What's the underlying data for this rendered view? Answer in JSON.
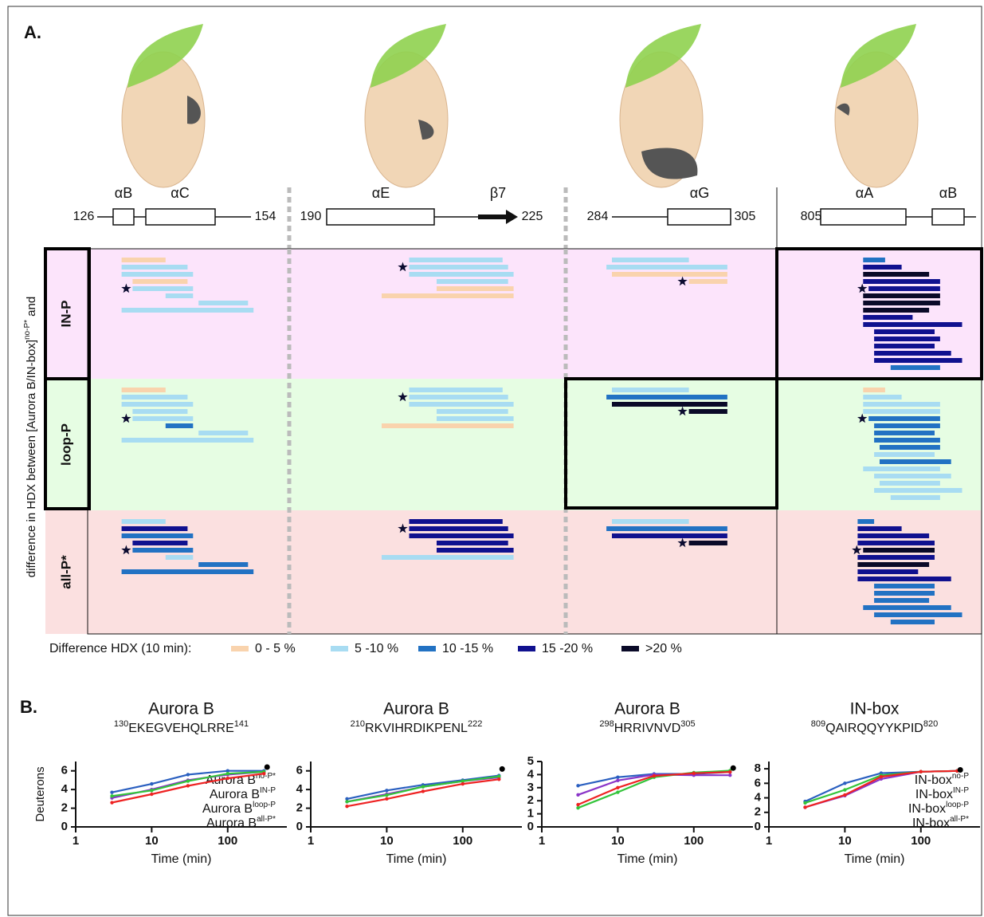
{
  "panel_a": {
    "label": "A.",
    "columns": [
      {
        "start": 126,
        "end": 154,
        "elements": [
          "αB",
          "αC"
        ]
      },
      {
        "start": 190,
        "end": 225,
        "elements": [
          "αE",
          "β7"
        ]
      },
      {
        "start": 284,
        "end": 305,
        "elements": [
          "αG"
        ]
      },
      {
        "start": 805,
        "elements": [
          "αA",
          "αB"
        ]
      }
    ],
    "y_label": {
      "text": "difference in HDX between [Aurora B/IN-box]",
      "sup": "no-P*",
      "tail": " and"
    },
    "rows": [
      {
        "label": "IN-P",
        "stars": [
          4,
          1,
          3,
          4
        ],
        "cells": [
          [
            [
              130,
              138,
              0
            ],
            [
              130,
              142,
              1
            ],
            [
              130,
              143,
              1
            ],
            [
              132,
              142,
              0
            ],
            [
              132,
              143,
              1
            ],
            [
              138,
              143,
              1
            ],
            [
              144,
              153,
              1
            ],
            [
              130,
              154,
              1
            ]
          ],
          [
            [
              205,
              222,
              1
            ],
            [
              205,
              223,
              1
            ],
            [
              205,
              224,
              1
            ],
            [
              210,
              223,
              1
            ],
            [
              210,
              224,
              0
            ],
            [
              200,
              224,
              0
            ]
          ],
          [
            [
              284,
              298,
              1
            ],
            [
              283,
              305,
              1
            ],
            [
              284,
              305,
              0
            ],
            [
              298,
              305,
              0
            ]
          ],
          [
            [
              812,
              816,
              2
            ],
            [
              812,
              819,
              3
            ],
            [
              812,
              824,
              4
            ],
            [
              812,
              826,
              3
            ],
            [
              813,
              826,
              3
            ],
            [
              812,
              826,
              4
            ],
            [
              812,
              826,
              4
            ],
            [
              812,
              824,
              4
            ],
            [
              812,
              821,
              3
            ],
            [
              812,
              830,
              3
            ],
            [
              814,
              825,
              3
            ],
            [
              814,
              826,
              3
            ],
            [
              814,
              825,
              3
            ],
            [
              814,
              828,
              3
            ],
            [
              814,
              830,
              3
            ],
            [
              817,
              826,
              2
            ]
          ]
        ]
      },
      {
        "label": "loop-P",
        "stars": [
          4,
          1,
          3,
          4
        ],
        "cells": [
          [
            [
              130,
              138,
              0
            ],
            [
              130,
              142,
              1
            ],
            [
              130,
              143,
              1
            ],
            [
              132,
              142,
              1
            ],
            [
              132,
              143,
              1
            ],
            [
              138,
              143,
              2
            ],
            [
              144,
              153,
              1
            ],
            [
              130,
              154,
              1
            ]
          ],
          [
            [
              205,
              222,
              1
            ],
            [
              205,
              223,
              1
            ],
            [
              205,
              224,
              1
            ],
            [
              210,
              223,
              1
            ],
            [
              210,
              224,
              1
            ],
            [
              200,
              224,
              0
            ]
          ],
          [
            [
              284,
              298,
              1
            ],
            [
              283,
              305,
              2
            ],
            [
              284,
              305,
              4
            ],
            [
              298,
              305,
              4
            ]
          ],
          [
            [
              812,
              816,
              0
            ],
            [
              812,
              819,
              1
            ],
            [
              812,
              826,
              1
            ],
            [
              812,
              826,
              1
            ],
            [
              813,
              826,
              2
            ],
            [
              814,
              826,
              2
            ],
            [
              814,
              825,
              2
            ],
            [
              814,
              826,
              2
            ],
            [
              815,
              826,
              2
            ],
            [
              814,
              825,
              1
            ],
            [
              815,
              828,
              2
            ],
            [
              812,
              826,
              1
            ],
            [
              814,
              828,
              1
            ],
            [
              815,
              826,
              1
            ],
            [
              814,
              830,
              1
            ],
            [
              817,
              826,
              1
            ]
          ]
        ]
      },
      {
        "label": "all-P*",
        "stars": [
          4,
          1,
          3,
          4
        ],
        "cells": [
          [
            [
              130,
              138,
              1
            ],
            [
              130,
              142,
              3
            ],
            [
              130,
              143,
              2
            ],
            [
              132,
              142,
              3
            ],
            [
              132,
              143,
              2
            ],
            [
              138,
              143,
              1
            ],
            [
              144,
              153,
              2
            ],
            [
              130,
              154,
              2
            ]
          ],
          [
            [
              205,
              222,
              3
            ],
            [
              205,
              223,
              3
            ],
            [
              205,
              224,
              3
            ],
            [
              210,
              223,
              3
            ],
            [
              210,
              224,
              3
            ],
            [
              200,
              224,
              1
            ]
          ],
          [
            [
              284,
              298,
              1
            ],
            [
              283,
              305,
              2
            ],
            [
              284,
              305,
              3
            ],
            [
              298,
              305,
              4
            ]
          ],
          [
            [
              811,
              814,
              2
            ],
            [
              811,
              819,
              3
            ],
            [
              811,
              824,
              3
            ],
            [
              811,
              825,
              3
            ],
            [
              812,
              825,
              4
            ],
            [
              811,
              825,
              3
            ],
            [
              811,
              824,
              4
            ],
            [
              811,
              822,
              3
            ],
            [
              811,
              828,
              3
            ],
            [
              814,
              825,
              2
            ],
            [
              814,
              825,
              2
            ],
            [
              814,
              824,
              2
            ],
            [
              812,
              828,
              2
            ],
            [
              814,
              830,
              2
            ],
            [
              817,
              825,
              2
            ]
          ]
        ]
      }
    ],
    "legend": {
      "title": "Difference HDX (10 min):",
      "levels": [
        {
          "label": "0 - 5 %",
          "color": "#f9d3ad"
        },
        {
          "label": "5 -10 %",
          "color": "#a8dcf2"
        },
        {
          "label": "10 -15 %",
          "color": "#2272c3"
        },
        {
          "label": "15 -20 %",
          "color": "#10118f"
        },
        {
          "label": ">20 %",
          "color": "#0a0a28"
        }
      ]
    }
  },
  "panel_b_label": "B.",
  "chart_data": [
    {
      "type": "line",
      "title": "Aurora B",
      "subtitle": {
        "pre": "130",
        "text": "EKEGVEHQLRRE",
        "post": "141"
      },
      "xlabel": "Time (min)",
      "ylabel": "Deuterons",
      "log_x": true,
      "xlim": [
        1,
        600
      ],
      "ylim": [
        0,
        7
      ],
      "xticks": [
        1,
        10,
        100
      ],
      "yticks": [
        0,
        2,
        4,
        6
      ],
      "x": [
        3,
        10,
        30,
        100,
        300
      ],
      "legend": "lower right",
      "series": [
        {
          "name": "Aurora B",
          "tag": "no-P*",
          "color": "#2a5fc0",
          "values": [
            3.7,
            4.6,
            5.6,
            6.0,
            6.0
          ]
        },
        {
          "name": "Aurora B",
          "tag": "IN-P",
          "color": "#8a35c8",
          "values": [
            3.1,
            4.0,
            5.0,
            5.6,
            5.9
          ]
        },
        {
          "name": "Aurora B",
          "tag": "loop-P",
          "color": "#33c43a",
          "values": [
            3.3,
            3.9,
            4.9,
            5.7,
            5.9
          ]
        },
        {
          "name": "Aurora B",
          "tag": "all-P*",
          "color": "#ee2222",
          "values": [
            2.6,
            3.5,
            4.4,
            5.2,
            5.7
          ]
        }
      ],
      "marker": {
        "x": 330,
        "y": 6.4
      }
    },
    {
      "type": "line",
      "title": "Aurora B",
      "subtitle": {
        "pre": "210",
        "text": "RKVIHRDIKPENL",
        "post": "222"
      },
      "xlabel": "Time (min)",
      "log_x": true,
      "xlim": [
        1,
        600
      ],
      "ylim": [
        0,
        7
      ],
      "xticks": [
        1,
        10,
        100
      ],
      "yticks": [
        0,
        2,
        4,
        6
      ],
      "x": [
        3,
        10,
        30,
        100,
        300
      ],
      "series": [
        {
          "color": "#2a5fc0",
          "values": [
            3.0,
            3.9,
            4.5,
            5.0,
            5.5
          ]
        },
        {
          "color": "#8a35c8",
          "values": [
            2.7,
            3.5,
            4.3,
            4.9,
            5.3
          ]
        },
        {
          "color": "#33c43a",
          "values": [
            2.7,
            3.4,
            4.3,
            4.9,
            5.4
          ]
        },
        {
          "color": "#ee2222",
          "values": [
            2.2,
            3.0,
            3.8,
            4.6,
            5.1
          ]
        }
      ],
      "marker": {
        "x": 330,
        "y": 6.2
      }
    },
    {
      "type": "line",
      "title": "Aurora B",
      "subtitle": {
        "pre": "298",
        "text": "HRRIVNVD",
        "post": "305"
      },
      "xlabel": "Time (min)",
      "log_x": true,
      "xlim": [
        1,
        600
      ],
      "ylim": [
        0,
        5
      ],
      "xticks": [
        1,
        10,
        100
      ],
      "yticks": [
        0,
        1,
        2,
        3,
        4,
        5
      ],
      "x": [
        3,
        10,
        30,
        100,
        300
      ],
      "series": [
        {
          "color": "#2a5fc0",
          "values": [
            3.15,
            3.8,
            4.05,
            4.05,
            4.2
          ]
        },
        {
          "color": "#8a35c8",
          "values": [
            2.45,
            3.55,
            4.0,
            3.95,
            3.95
          ]
        },
        {
          "color": "#33c43a",
          "values": [
            1.45,
            2.65,
            3.8,
            4.15,
            4.3
          ]
        },
        {
          "color": "#ee2222",
          "values": [
            1.7,
            3.0,
            3.9,
            4.1,
            4.2
          ]
        }
      ],
      "marker": {
        "x": 330,
        "y": 4.5
      }
    },
    {
      "type": "line",
      "title": "IN-box",
      "subtitle": {
        "pre": "809",
        "text": "QAIRQQYYKPID",
        "post": "820"
      },
      "xlabel": "Time (min)",
      "log_x": true,
      "xlim": [
        1,
        600
      ],
      "ylim": [
        0,
        9
      ],
      "xticks": [
        1,
        10,
        100
      ],
      "yticks": [
        0,
        2,
        4,
        6,
        8
      ],
      "x": [
        3,
        10,
        30,
        100,
        300
      ],
      "legend": "lower right",
      "series": [
        {
          "name": "IN-box",
          "tag": "no-P",
          "color": "#2a5fc0",
          "values": [
            3.5,
            6.0,
            7.4,
            7.6,
            7.7
          ]
        },
        {
          "name": "IN-box",
          "tag": "IN-P",
          "color": "#8a35c8",
          "values": [
            2.7,
            4.3,
            6.6,
            7.6,
            7.7
          ]
        },
        {
          "name": "IN-box",
          "tag": "loop-P",
          "color": "#33c43a",
          "values": [
            3.3,
            5.1,
            7.1,
            7.6,
            7.7
          ]
        },
        {
          "name": "IN-box",
          "tag": "all-P*",
          "color": "#ee2222",
          "values": [
            2.7,
            4.4,
            6.9,
            7.6,
            7.7
          ]
        }
      ],
      "marker": {
        "x": 330,
        "y": 7.85
      }
    }
  ]
}
